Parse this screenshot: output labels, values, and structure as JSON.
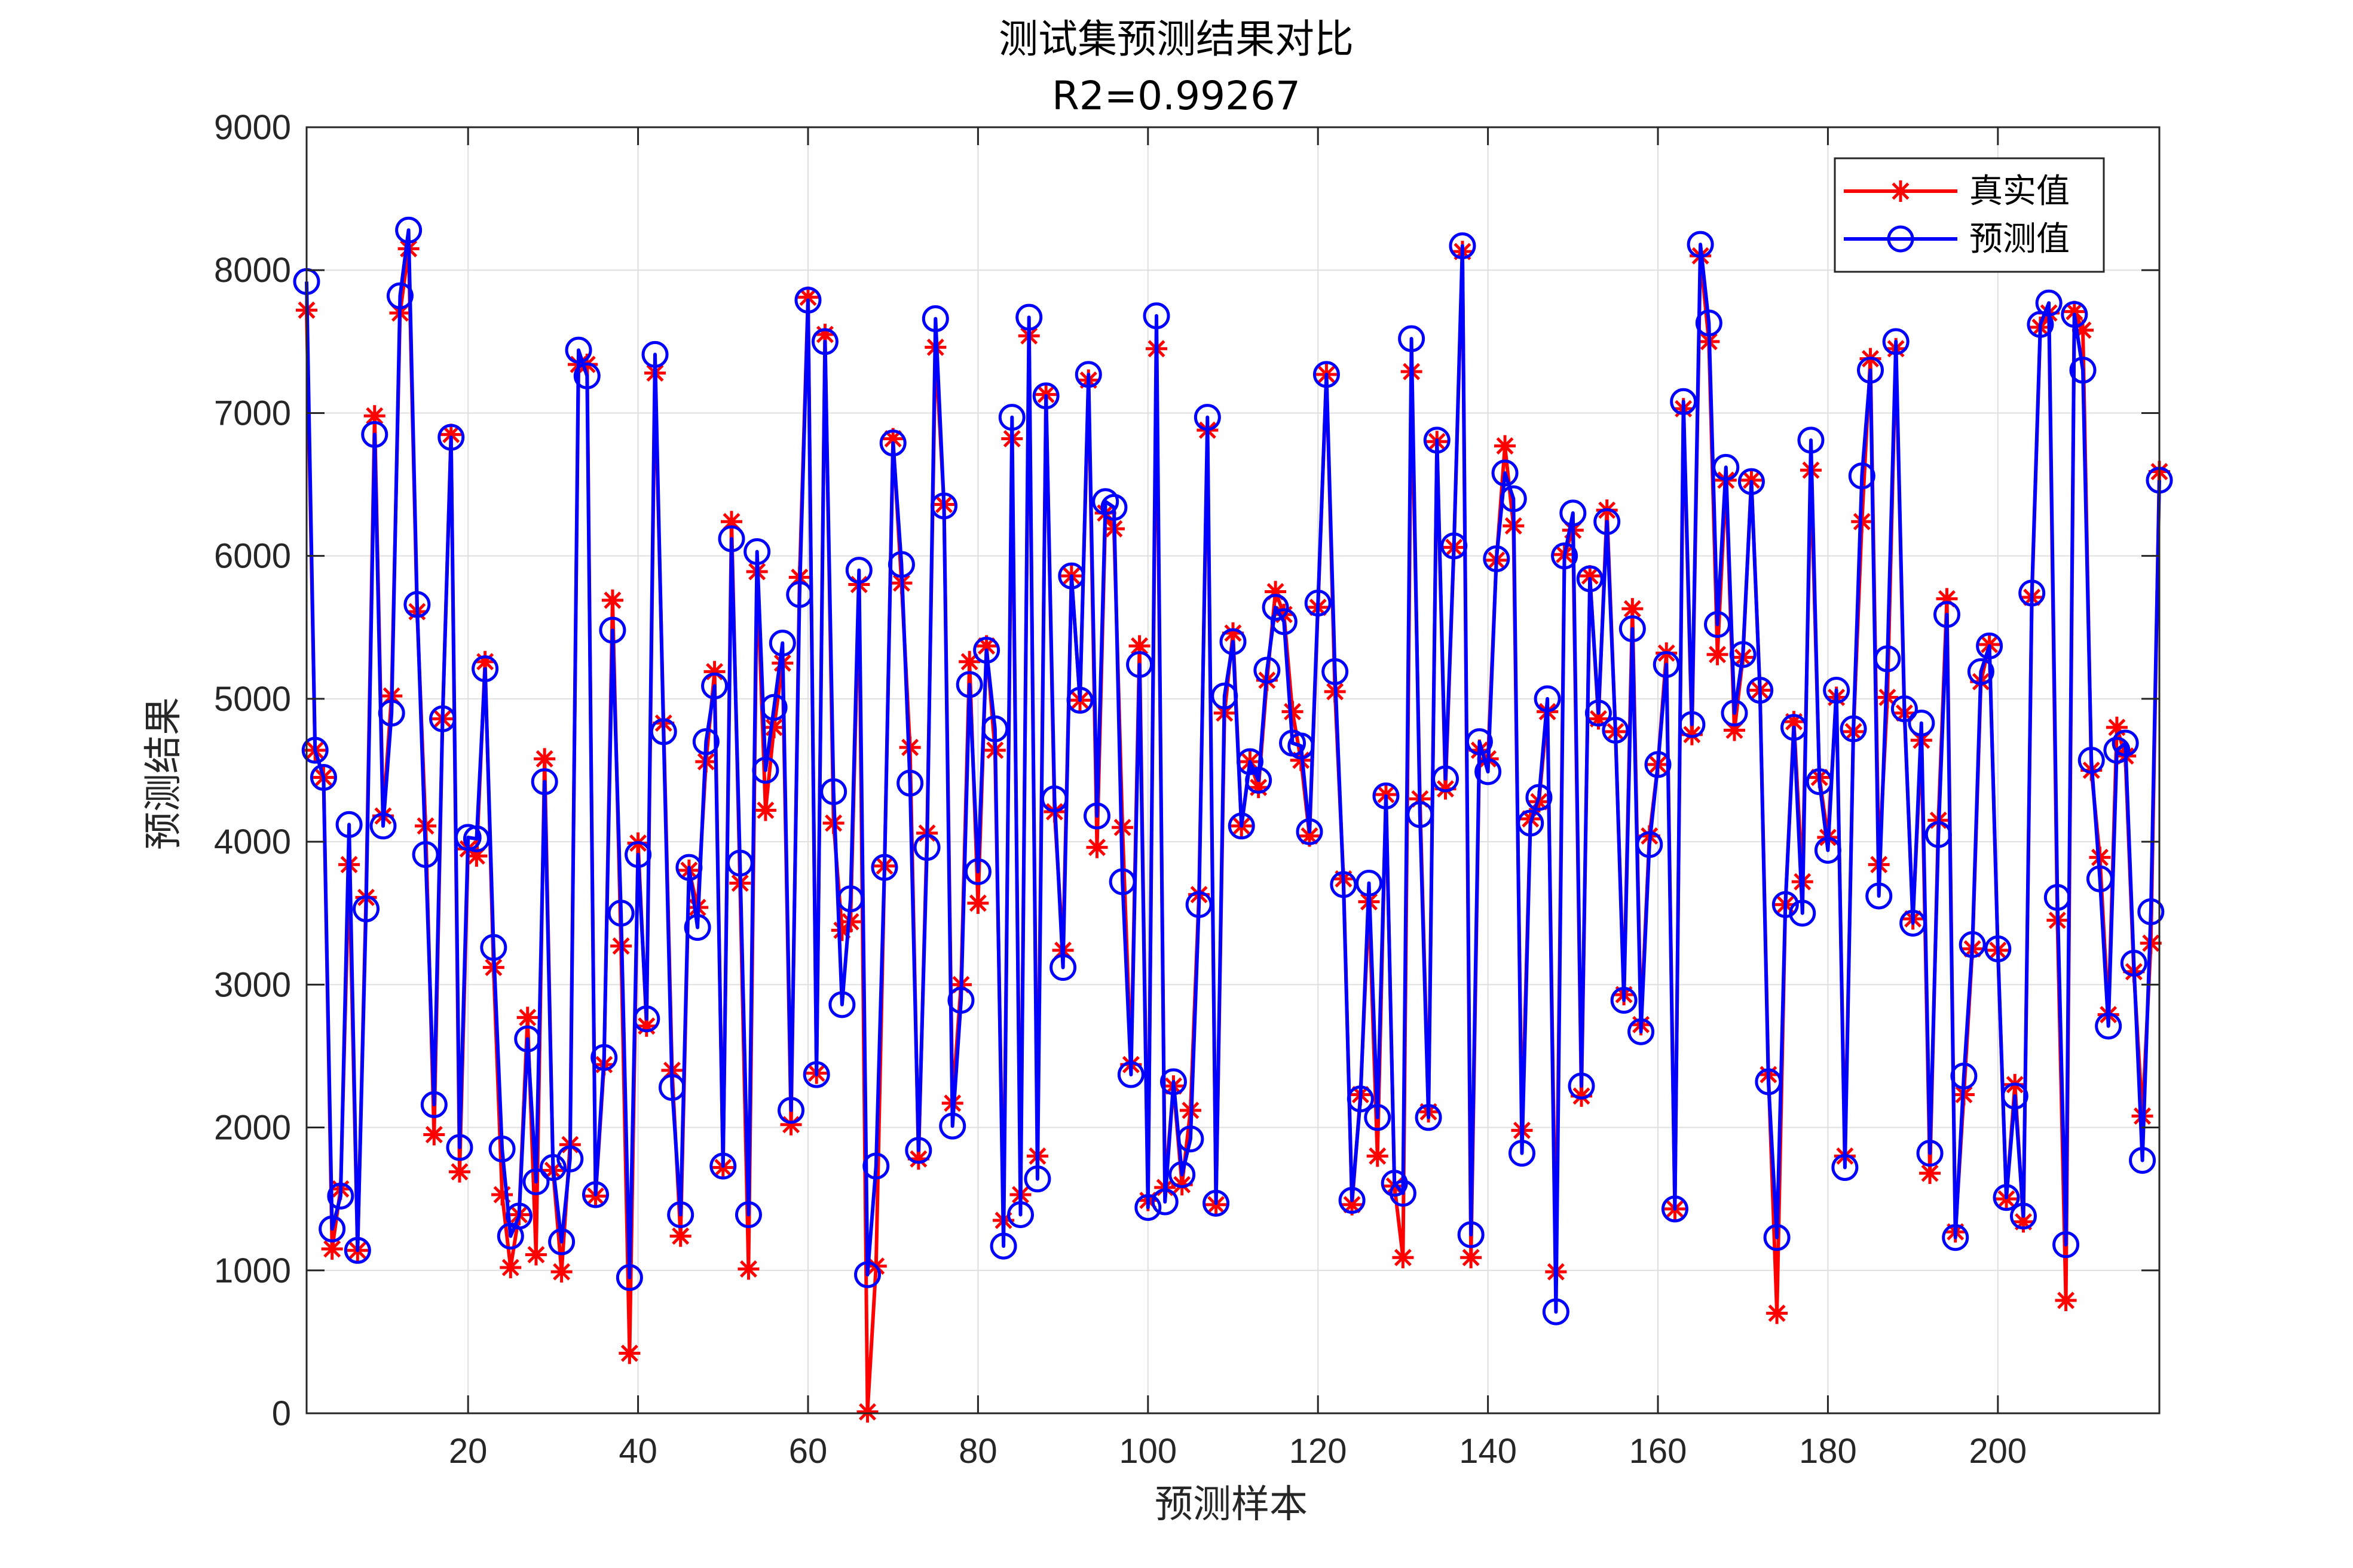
{
  "chart_data": {
    "type": "line",
    "title": "测试集预测结果对比",
    "subtitle": "R2=0.99267",
    "xlabel": "预测样本",
    "ylabel": "预测结果",
    "xlim": [
      1,
      219
    ],
    "ylim": [
      0,
      9000
    ],
    "xticks": [
      20,
      40,
      60,
      80,
      100,
      120,
      140,
      160,
      180,
      200
    ],
    "yticks": [
      0,
      1000,
      2000,
      3000,
      4000,
      5000,
      6000,
      7000,
      8000,
      9000
    ],
    "grid": true,
    "legend_position": "top-right",
    "series": [
      {
        "name": "真实值",
        "color": "#ff0000",
        "marker": "asterisk",
        "values": [
          7720,
          4640,
          4450,
          1150,
          1570,
          3840,
          1140,
          3610,
          6980,
          4180,
          5020,
          7700,
          8150,
          5610,
          4110,
          1950,
          4860,
          6850,
          1690,
          3950,
          3900,
          5260,
          3120,
          1530,
          1020,
          1390,
          2770,
          1110,
          4580,
          1700,
          990,
          1880,
          7340,
          7340,
          1520,
          2440,
          5690,
          3270,
          420,
          3990,
          2710,
          7280,
          4830,
          2400,
          1240,
          3800,
          3540,
          4560,
          5190,
          1720,
          6240,
          3710,
          1010,
          5890,
          4220,
          4800,
          5250,
          2020,
          5850,
          7810,
          2380,
          7550,
          4130,
          3380,
          3440,
          5800,
          10,
          1030,
          3830,
          6820,
          5810,
          4660,
          1780,
          4060,
          7460,
          6360,
          2170,
          3000,
          5260,
          3570,
          5370,
          4640,
          1350,
          6820,
          1530,
          7540,
          1800,
          7130,
          4210,
          3240,
          5860,
          4990,
          7230,
          3960,
          6300,
          6190,
          4100,
          2440,
          5370,
          1490,
          7450,
          1580,
          2290,
          1600,
          2120,
          3630,
          6880,
          1460,
          4900,
          5460,
          4110,
          4560,
          4380,
          5130,
          5750,
          5590,
          4910,
          4570,
          4040,
          5640,
          7270,
          5050,
          3740,
          1460,
          2230,
          3580,
          1800,
          4330,
          1590,
          1090,
          7290,
          4300,
          2110,
          6800,
          4370,
          6060,
          8130,
          1090,
          4640,
          4580,
          5970,
          6770,
          6210,
          1980,
          4160,
          4280,
          4910,
          990,
          6010,
          6180,
          2220,
          5860,
          4860,
          6320,
          4770,
          2930,
          5630,
          2720,
          4040,
          4540,
          5320,
          1430,
          7030,
          4750,
          8100,
          7500,
          5310,
          6530,
          4780,
          5290,
          6530,
          5060,
          2370,
          700,
          3560,
          4840,
          3720,
          6600,
          4450,
          4030,
          5010,
          1800,
          4770,
          6240,
          7380,
          3840,
          5010,
          7450,
          4900,
          3460,
          4710,
          1680,
          4150,
          5700,
          1270,
          2230,
          3250,
          5120,
          5380,
          3240,
          1500,
          2300,
          1340,
          5710,
          7600,
          7700,
          3450,
          790,
          7710,
          7580,
          4500,
          3890,
          2790,
          4800,
          4600,
          3090,
          2080,
          3290,
          6590
        ]
      },
      {
        "name": "预测值",
        "color": "#0000ff",
        "marker": "circle",
        "values": [
          7920,
          4640,
          4450,
          1290,
          1520,
          4120,
          1140,
          3530,
          6850,
          4110,
          4900,
          7820,
          8280,
          5660,
          3910,
          2160,
          4860,
          6830,
          1860,
          4030,
          4020,
          5210,
          3260,
          1850,
          1240,
          1380,
          2620,
          1620,
          4420,
          1720,
          1200,
          1780,
          7440,
          7260,
          1530,
          2490,
          5480,
          3500,
          950,
          3910,
          2760,
          7410,
          4770,
          2280,
          1390,
          3820,
          3400,
          4700,
          5090,
          1730,
          6120,
          3850,
          1390,
          6030,
          4500,
          4940,
          5390,
          2120,
          5730,
          7790,
          2370,
          7500,
          4350,
          2860,
          3600,
          5900,
          970,
          1730,
          3820,
          6790,
          5940,
          4410,
          1840,
          3960,
          7660,
          6350,
          2010,
          2890,
          5100,
          3790,
          5340,
          4790,
          1170,
          6970,
          1390,
          7670,
          1640,
          7120,
          4300,
          3120,
          5860,
          4990,
          7270,
          4180,
          6380,
          6340,
          3720,
          2370,
          5240,
          1440,
          7680,
          1480,
          2320,
          1670,
          1920,
          3560,
          6970,
          1470,
          5020,
          5400,
          4110,
          4560,
          4430,
          5200,
          5640,
          5540,
          4690,
          4670,
          4070,
          5670,
          7270,
          5190,
          3700,
          1490,
          2200,
          3710,
          2070,
          4320,
          1610,
          1540,
          7520,
          4190,
          2070,
          6810,
          4440,
          6070,
          8170,
          1250,
          4700,
          4490,
          5980,
          6580,
          6400,
          1820,
          4130,
          4310,
          5000,
          710,
          6000,
          6300,
          2290,
          5840,
          4900,
          6240,
          4780,
          2890,
          5490,
          2670,
          3980,
          4540,
          5240,
          1430,
          7080,
          4820,
          8180,
          7630,
          5520,
          6620,
          4900,
          5310,
          6520,
          5060,
          2320,
          1230,
          3560,
          4800,
          3500,
          6810,
          4420,
          3940,
          5060,
          1720,
          4790,
          6560,
          7300,
          3620,
          5280,
          7500,
          4930,
          3430,
          4830,
          1820,
          4050,
          5590,
          1230,
          2360,
          3280,
          5190,
          5370,
          3250,
          1510,
          2220,
          1380,
          5740,
          7620,
          7770,
          3610,
          1180,
          7690,
          7300,
          4570,
          3740,
          2710,
          4640,
          4690,
          3150,
          1770,
          3510,
          6530
        ]
      }
    ]
  }
}
